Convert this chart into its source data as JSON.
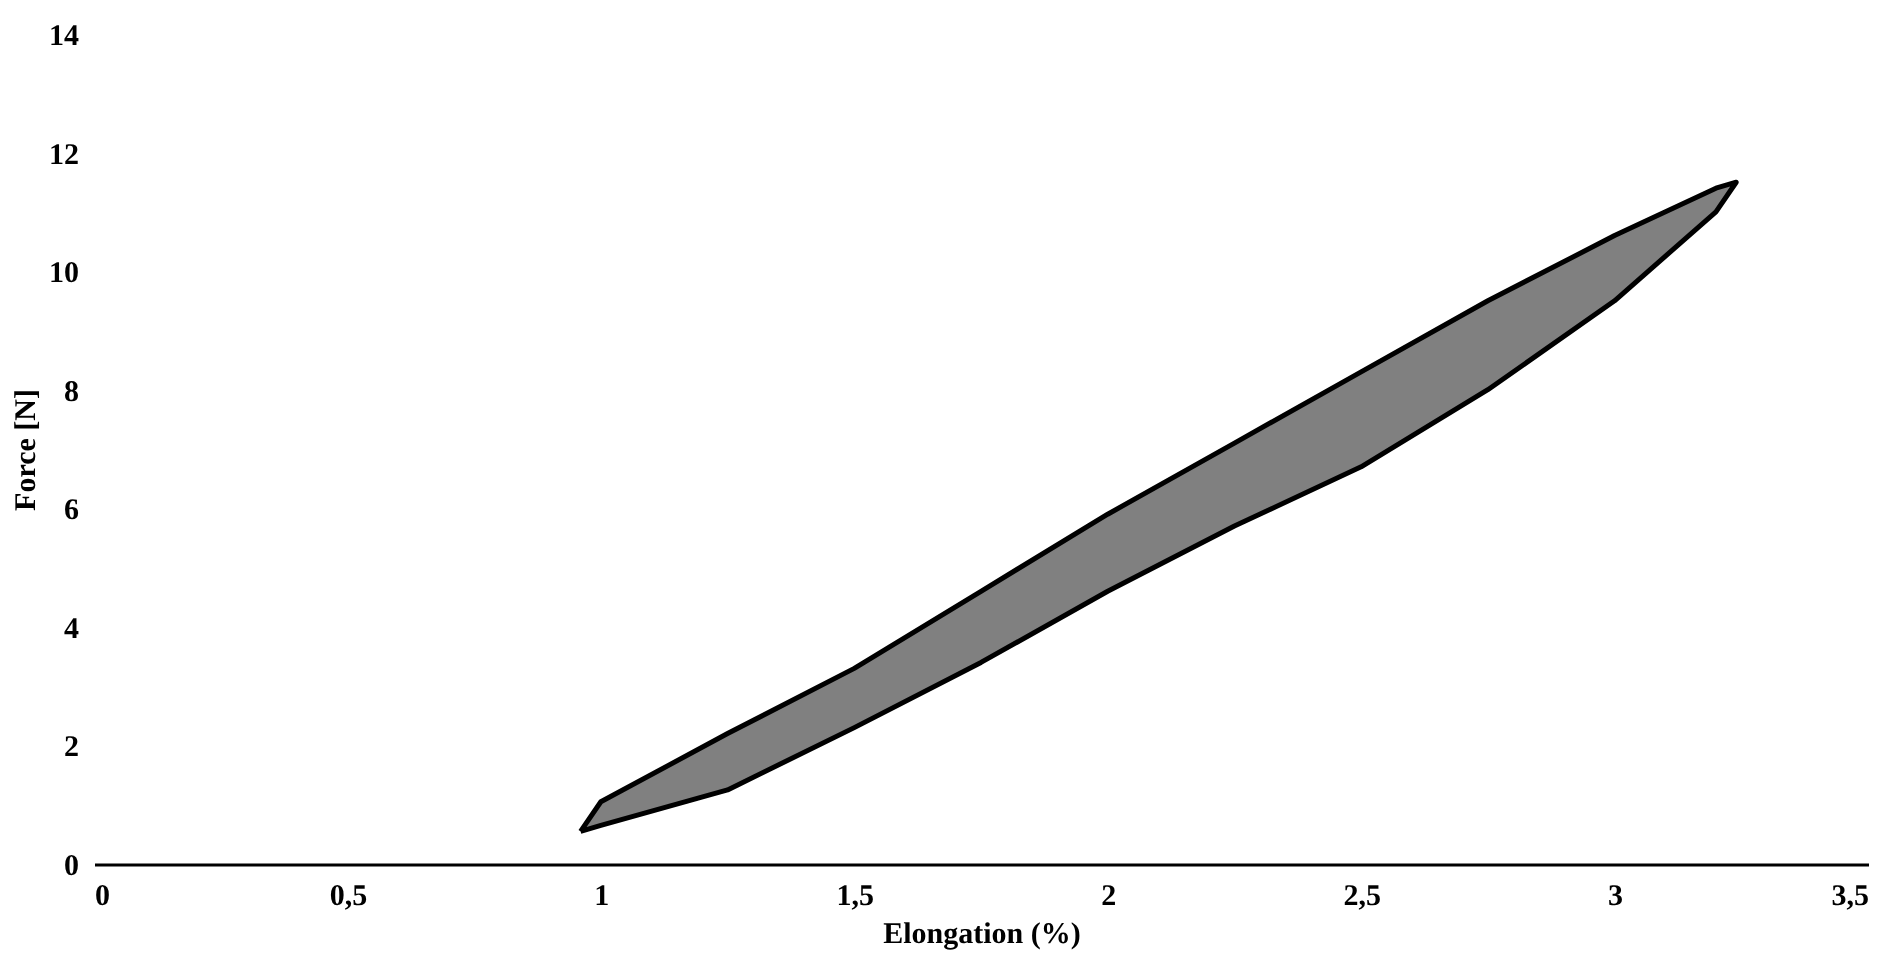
{
  "chart_data": {
    "type": "area",
    "xlabel": "Elongation (%)",
    "ylabel": "Force [N]",
    "series": [
      {
        "color": "#808080",
        "x": [
          0.96,
          1.0,
          1.25,
          1.5,
          1.75,
          2.0,
          2.25,
          2.5,
          2.75,
          3.0,
          3.2,
          3.24,
          3.2,
          3.0,
          2.75,
          2.5,
          2.25,
          2.0,
          1.75,
          1.5,
          1.25,
          1.0
        ],
        "values": [
          0.55,
          1.05,
          2.2,
          3.3,
          4.6,
          5.9,
          7.1,
          8.3,
          9.5,
          10.6,
          11.4,
          11.5,
          11.0,
          9.5,
          8.0,
          6.7,
          5.7,
          4.6,
          3.4,
          2.3,
          1.25,
          0.65
        ]
      }
    ],
    "xlim": [
      0,
      3.5
    ],
    "xticks": [
      0,
      {
        "value": 0.5,
        "label": "0,5"
      },
      1,
      {
        "value": 1.5,
        "label": "1,5"
      },
      2,
      {
        "value": 2.5,
        "label": "2,5"
      },
      3,
      {
        "value": 3.5,
        "label": "3,5"
      }
    ],
    "ylim": [
      0,
      14
    ],
    "yticks": [
      0,
      2,
      4,
      6,
      8,
      10,
      12,
      14
    ],
    "grid": false
  }
}
